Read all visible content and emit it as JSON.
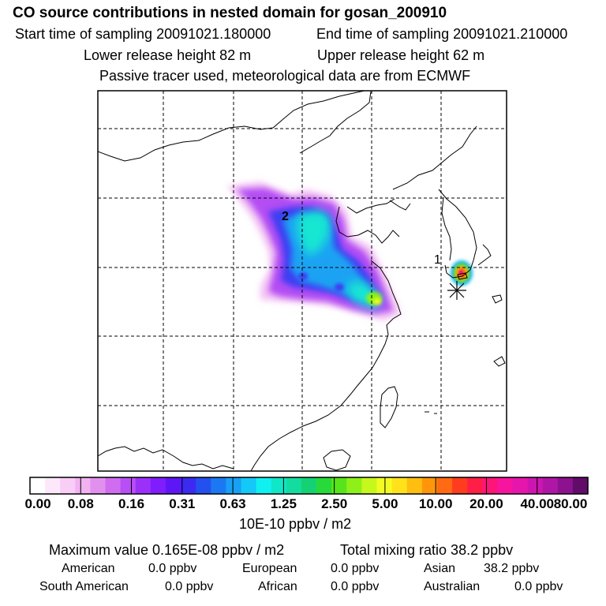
{
  "header": {
    "title": "CO  source contributions in nested domain for gosan_200910",
    "start_label": "Start time of sampling 20091021.180000",
    "end_label": "End time of sampling 20091021.210000",
    "lower_label": "Lower release height   82 m",
    "upper_label": "Upper release height   62 m",
    "note": "Passive tracer used, meteorological data are from ECMWF"
  },
  "chart_data": {
    "type": "heatmap",
    "title": "CO  source contributions in nested domain for gosan_200910",
    "grid": true,
    "markers": [
      {
        "label": "1",
        "desc": "receptor-near source cluster (Jeju)"
      },
      {
        "label": "2",
        "desc": "northern China source region"
      }
    ],
    "colorbar": {
      "units": "10E-10 ppbv / m2",
      "tick_labels": [
        "0.00",
        "0.08",
        "0.16",
        "0.31",
        "0.63",
        "1.25",
        "2.50",
        "5.00",
        "10.00",
        "20.00",
        "40.00",
        "80.00"
      ],
      "tick_values": [
        0.0,
        0.08,
        0.16,
        0.31,
        0.63,
        1.25,
        2.5,
        5.0,
        10.0,
        20.0,
        40.0,
        80.0
      ],
      "colors": [
        "#ffffff",
        "#fde8fb",
        "#f8cdf6",
        "#f2b2f1",
        "#e290ee",
        "#cf6cf0",
        "#b84ef5",
        "#9b31f9",
        "#7f1dfd",
        "#5e16f7",
        "#3c2af2",
        "#2350ee",
        "#1b78f2",
        "#17a0f5",
        "#14c8f7",
        "#11f0f0",
        "#10e6c8",
        "#12dca0",
        "#14d274",
        "#28d93a",
        "#58e41a",
        "#8ef018",
        "#c6f81c",
        "#f2fc22",
        "#ffe21a",
        "#ffbe10",
        "#ff960a",
        "#ff6a12",
        "#ff3c1e",
        "#ff1e46",
        "#ff1477",
        "#f7149f",
        "#e616ad",
        "#cd16b1",
        "#b016a6",
        "#8c1290",
        "#620c6a"
      ]
    },
    "summary": {
      "max_label": "Maximum value  0.165E-08 ppbv / m2",
      "total_label": "Total mixing ratio      38.2 ppbv"
    },
    "contributions": [
      {
        "name": "American",
        "value": "0.0 ppbv"
      },
      {
        "name": "European",
        "value": "0.0 ppbv"
      },
      {
        "name": "Asian",
        "value": "38.2 ppbv"
      },
      {
        "name": "South American",
        "value": "0.0 ppbv"
      },
      {
        "name": "African",
        "value": "0.0 ppbv"
      },
      {
        "name": "Australian",
        "value": "0.0 ppbv"
      }
    ]
  }
}
